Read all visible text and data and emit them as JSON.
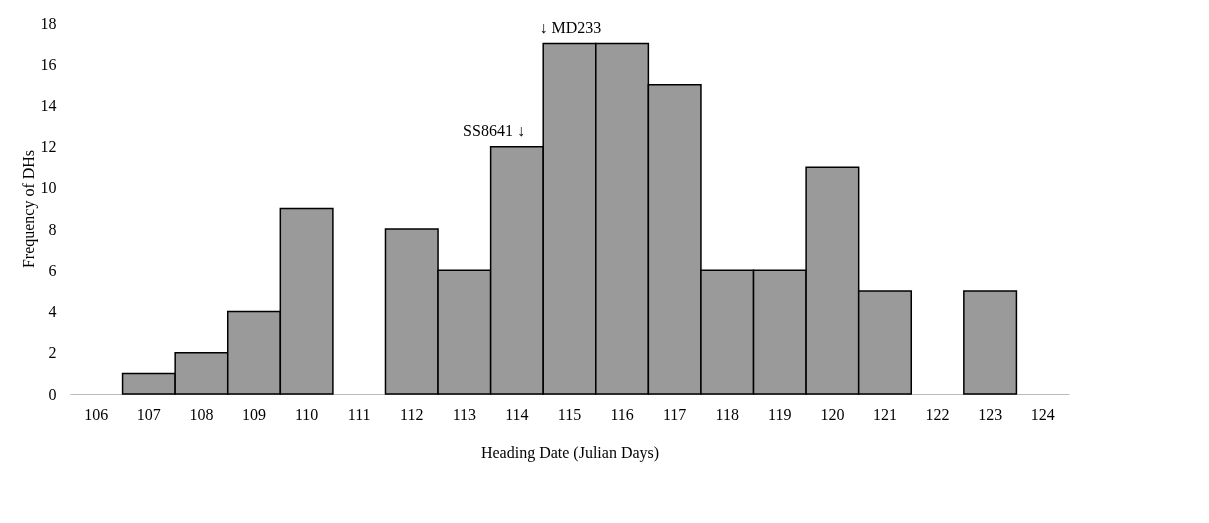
{
  "chart_data": {
    "type": "bar",
    "xlabel": "Heading Date (Julian Days)",
    "ylabel": "Frequency of DHs",
    "categories": [
      "106",
      "107",
      "108",
      "109",
      "110",
      "111",
      "112",
      "113",
      "114",
      "115",
      "116",
      "117",
      "118",
      "119",
      "120",
      "121",
      "122",
      "123",
      "124"
    ],
    "values": [
      0,
      1,
      2,
      4,
      9,
      0,
      8,
      6,
      12,
      17,
      17,
      15,
      6,
      6,
      11,
      5,
      0,
      5,
      0
    ],
    "color": "#9a9a9a",
    "ylim": [
      0,
      18
    ],
    "yticks": [
      0,
      2,
      4,
      6,
      8,
      10,
      12,
      14,
      16,
      18
    ],
    "grid": false,
    "annotations": [
      {
        "text": "SS8641 ↓",
        "x": "114",
        "y": 12
      },
      {
        "text": "↓ MD233",
        "x": "115",
        "y": 17
      }
    ]
  }
}
